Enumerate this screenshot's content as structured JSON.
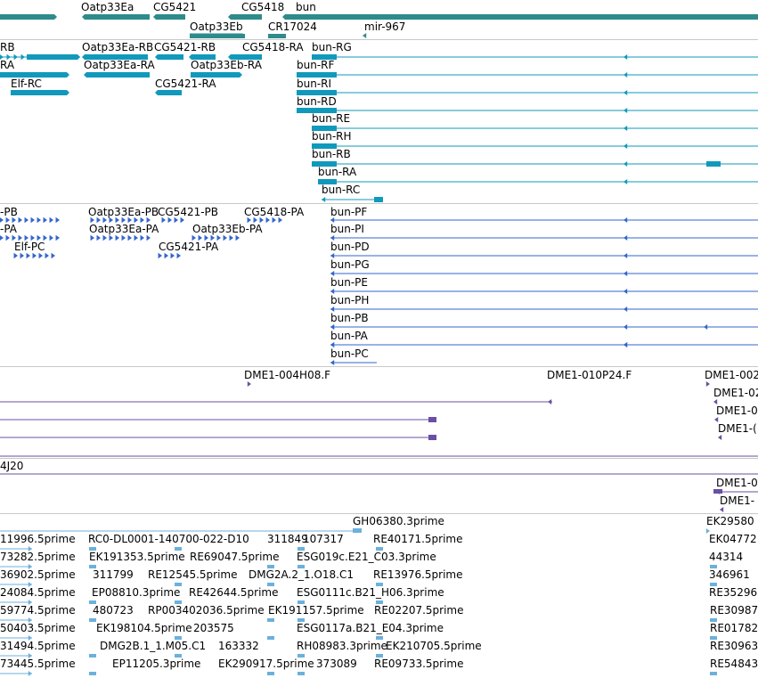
{
  "colors": {
    "gene": "#2e8b8b",
    "mrna": "#1199bb",
    "protein": "#3366cc",
    "clone": "#6a4fa3",
    "est": "#6cb0dc",
    "separator": "#c8c8c8"
  },
  "tracks": [
    {
      "id": "track-gene",
      "features": [
        {
          "label": "Oatp33Ea",
          "strand": "-"
        },
        {
          "label": "CG5421",
          "strand": "-"
        },
        {
          "label": "CG5418",
          "strand": "-"
        },
        {
          "label": "bun",
          "strand": "-"
        },
        {
          "label": "Oatp33Eb",
          "strand": "+"
        },
        {
          "label": "CR17024",
          "strand": "+"
        },
        {
          "label": "mir-967",
          "strand": "-"
        }
      ]
    },
    {
      "id": "track-mrna",
      "features": [
        {
          "label": "RB"
        },
        {
          "label": "Oatp33Ea-RB"
        },
        {
          "label": "CG5421-RB"
        },
        {
          "label": "CG5418-RA"
        },
        {
          "label": "bun-RG"
        },
        {
          "label": "RA"
        },
        {
          "label": "Oatp33Ea-RA"
        },
        {
          "label": "Oatp33Eb-RA"
        },
        {
          "label": "bun-RF"
        },
        {
          "label": "Elf-RC"
        },
        {
          "label": "CG5421-RA"
        },
        {
          "label": "bun-RI"
        },
        {
          "label": "bun-RD"
        },
        {
          "label": "bun-RE"
        },
        {
          "label": "bun-RH"
        },
        {
          "label": "bun-RB"
        },
        {
          "label": "bun-RA"
        },
        {
          "label": "bun-RC"
        }
      ]
    },
    {
      "id": "track-protein",
      "features": [
        {
          "label": "-PB"
        },
        {
          "label": "Oatp33Ea-PB"
        },
        {
          "label": "CG5421-PB"
        },
        {
          "label": "CG5418-PA"
        },
        {
          "label": "bun-PF"
        },
        {
          "label": "-PA"
        },
        {
          "label": "Oatp33Ea-PA"
        },
        {
          "label": "Oatp33Eb-PA"
        },
        {
          "label": "bun-PI"
        },
        {
          "label": "Elf-PC"
        },
        {
          "label": "CG5421-PA"
        },
        {
          "label": "bun-PD"
        },
        {
          "label": "bun-PG"
        },
        {
          "label": "bun-PE"
        },
        {
          "label": "bun-PH"
        },
        {
          "label": "bun-PB"
        },
        {
          "label": "bun-PA"
        },
        {
          "label": "bun-PC"
        }
      ]
    },
    {
      "id": "track-clone",
      "features": [
        {
          "label": "DME1-004H08.F"
        },
        {
          "label": "DME1-010P24.F"
        },
        {
          "label": "DME1-002"
        },
        {
          "label": "DME1-02"
        },
        {
          "label": "DME1-0"
        },
        {
          "label": "DME1-("
        }
      ]
    },
    {
      "id": "track-clone2",
      "features": [
        {
          "label": "4J20"
        },
        {
          "label": "DME1-0"
        },
        {
          "label": "DME1-"
        }
      ]
    },
    {
      "id": "track-est",
      "features": [
        {
          "label": "GH06380.3prime"
        },
        {
          "label": "EK29580"
        },
        {
          "label": "11996.5prime"
        },
        {
          "label": "RC0-DL0001-140700-022-D10"
        },
        {
          "label": "311849"
        },
        {
          "label": "107317"
        },
        {
          "label": "RE40171.5prime"
        },
        {
          "label": "EK04772"
        },
        {
          "label": "73282.5prime"
        },
        {
          "label": "EK191353.5prime"
        },
        {
          "label": "RE69047.5prime"
        },
        {
          "label": "ESG019c.E21_C03.3prime"
        },
        {
          "label": "44314"
        },
        {
          "label": "36902.5prime"
        },
        {
          "label": "311799"
        },
        {
          "label": "RE12545.5prime"
        },
        {
          "label": "DMG2A.2_1.O18.C1"
        },
        {
          "label": "RE13976.5prime"
        },
        {
          "label": "346961"
        },
        {
          "label": "24084.5prime"
        },
        {
          "label": "EP08810.3prime"
        },
        {
          "label": "RE42644.5prime"
        },
        {
          "label": "ESG0111c.B21_H06.3prime"
        },
        {
          "label": "RE35296"
        },
        {
          "label": "59774.5prime"
        },
        {
          "label": "480723"
        },
        {
          "label": "RP003402036.5prime"
        },
        {
          "label": "EK191157.5prime"
        },
        {
          "label": "RE02207.5prime"
        },
        {
          "label": "RE30987"
        },
        {
          "label": "50403.5prime"
        },
        {
          "label": "EK198104.5prime"
        },
        {
          "label": "203575"
        },
        {
          "label": "ESG0117a.B21_E04.3prime"
        },
        {
          "label": "RE01782"
        },
        {
          "label": "31494.5prime"
        },
        {
          "label": "DMG2B.1_1.M05.C1"
        },
        {
          "label": "163332"
        },
        {
          "label": "RH08983.3prime"
        },
        {
          "label": "EK210705.5prime"
        },
        {
          "label": "RE30963"
        },
        {
          "label": "73445.5prime"
        },
        {
          "label": "EP11205.3prime"
        },
        {
          "label": "EK290917.5prime"
        },
        {
          "label": "373089"
        },
        {
          "label": "RE09733.5prime"
        },
        {
          "label": "RE54843"
        }
      ]
    }
  ]
}
